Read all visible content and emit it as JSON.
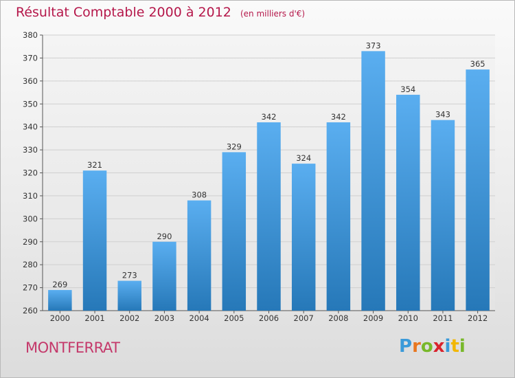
{
  "title": "Résultat Comptable 2000 à 2012",
  "unit": "(en milliers d'€)",
  "commune": "MONTFERRAT",
  "logo": {
    "letters": [
      "P",
      "r",
      "o",
      "x",
      "i",
      "t",
      "i"
    ],
    "colors": [
      "#3a9ad9",
      "#e8761e",
      "#78b82a",
      "#d9232d",
      "#3a9ad9",
      "#f2b705",
      "#78b82a"
    ]
  },
  "colors": {
    "bar_top": "#5aaef0",
    "bar_bottom": "#2678b8",
    "grid": "#cfcfcf"
  },
  "chart_data": {
    "type": "bar",
    "title": "Résultat Comptable 2000 à 2012",
    "ylabel": "en milliers d'€",
    "xlabel": "",
    "categories": [
      "2000",
      "2001",
      "2002",
      "2003",
      "2004",
      "2005",
      "2006",
      "2007",
      "2008",
      "2009",
      "2010",
      "2011",
      "2012"
    ],
    "values": [
      269,
      321,
      273,
      290,
      308,
      329,
      342,
      324,
      342,
      373,
      354,
      343,
      365
    ],
    "ylim": [
      260,
      380
    ],
    "yticks": [
      260,
      270,
      280,
      290,
      300,
      310,
      320,
      330,
      340,
      350,
      360,
      370,
      380
    ],
    "grid": true
  }
}
